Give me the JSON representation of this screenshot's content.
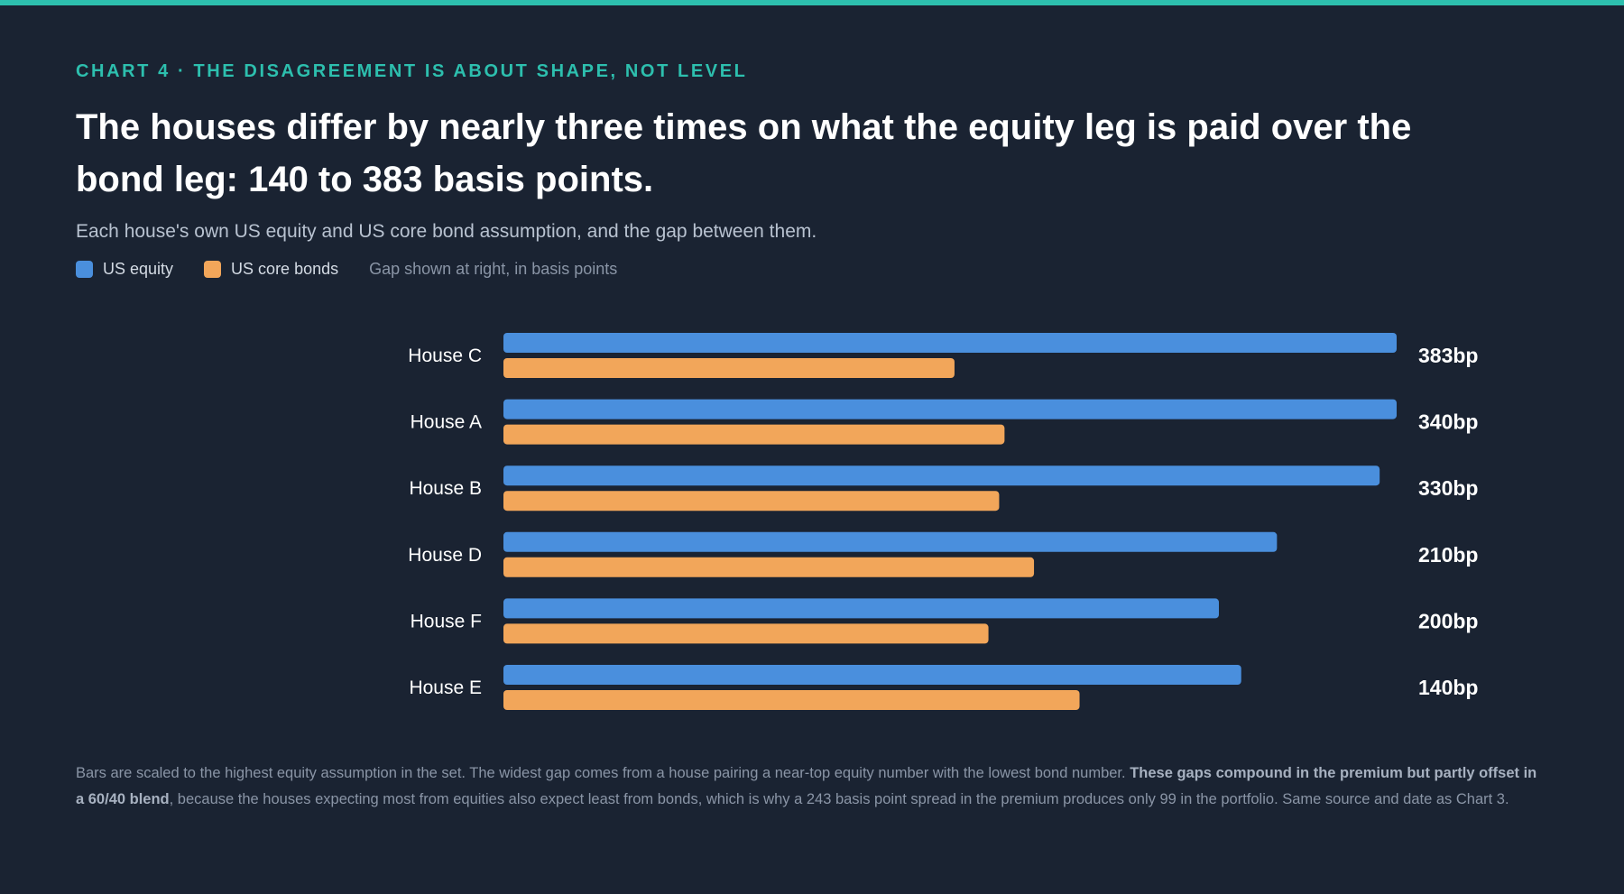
{
  "kicker": "CHART 4 · THE DISAGREEMENT IS ABOUT SHAPE, NOT LEVEL",
  "title": "The houses differ by nearly three times on what the equity leg is paid over the bond leg: 140 to 383 basis points.",
  "subtitle": "Each house's own US equity and US core bond assumption, and the gap between them.",
  "legend": {
    "equity_label": "US equity",
    "bonds_label": "US core bonds",
    "note": "Gap shown at right, in basis points"
  },
  "colors": {
    "equity": "#4a8fdd",
    "bonds": "#f2a65a",
    "accent": "#2dbfae",
    "background": "#1a2332"
  },
  "chart_data": {
    "type": "bar",
    "orientation": "horizontal",
    "categories": [
      "House C",
      "House A",
      "House B",
      "House D",
      "House F",
      "House E"
    ],
    "series": [
      {
        "name": "US equity",
        "values": [
          1.0,
          1.0,
          0.981,
          0.866,
          0.801,
          0.826
        ]
      },
      {
        "name": "US core bonds",
        "values": [
          0.505,
          0.561,
          0.555,
          0.594,
          0.543,
          0.645
        ]
      }
    ],
    "gap_labels": [
      "383bp",
      "340bp",
      "330bp",
      "210bp",
      "200bp",
      "140bp"
    ],
    "scale": "fraction of highest equity assumption",
    "xlim": [
      0,
      1
    ],
    "grid": false,
    "legend_position": "top-left"
  },
  "footnote": {
    "part1": "Bars are scaled to the highest equity assumption in the set. The widest gap comes from a house pairing a near-top equity number with the lowest bond number. ",
    "bold": "These gaps compound in the premium but partly offset in a 60/40 blend",
    "part2": ", because the houses expecting most from equities also expect least from bonds, which is why a 243 basis point spread in the premium produces only 99 in the portfolio. Same source and date as Chart 3."
  }
}
